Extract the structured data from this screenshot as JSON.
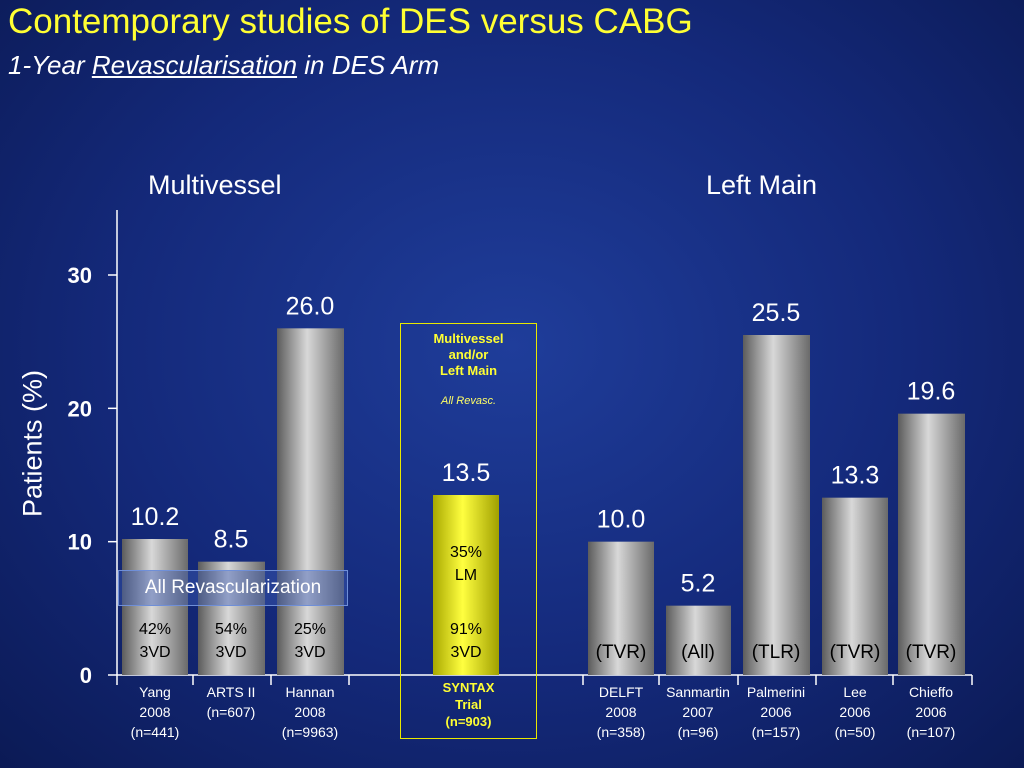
{
  "title": "Contemporary studies of DES versus CABG",
  "subtitle": {
    "prefix": "1-Year ",
    "underlined": "Revascularisation",
    "suffix": " in DES Arm"
  },
  "group_labels": {
    "multivessel": "Multivessel",
    "left_main": "Left Main"
  },
  "all_revascularization_label": "All Revascularization",
  "syntax": {
    "header_lines": [
      "Multivessel",
      "and/or",
      "Left Main"
    ],
    "note": "All Revasc.",
    "footer_lines": [
      "SYNTAX",
      "Trial",
      "(n=903)"
    ]
  },
  "colors": {
    "title": "#ffff33",
    "bar_gray": "#9a9a9a",
    "bar_yellow": "#ffff00",
    "background": "#14297a"
  },
  "chart_data": {
    "type": "bar",
    "ylabel": "Patients (%)",
    "ylim": [
      0,
      35
    ],
    "yticks": [
      0,
      10,
      20,
      30
    ],
    "bars": [
      {
        "label": [
          "Yang",
          "2008",
          "(n=441)"
        ],
        "value": 10.2,
        "value_label": "10.2",
        "inner": [
          "42%",
          "3VD"
        ],
        "color": "gray"
      },
      {
        "label": [
          "ARTS II",
          "(n=607)"
        ],
        "value": 8.5,
        "value_label": "8.5",
        "inner": [
          "54%",
          "3VD"
        ],
        "color": "gray"
      },
      {
        "label": [
          "Hannan",
          "2008",
          "(n=9963)"
        ],
        "value": 26.0,
        "value_label": "26.0",
        "inner": [
          "25%",
          "3VD"
        ],
        "color": "gray"
      },
      {
        "label": [],
        "value": 13.5,
        "value_label": "13.5",
        "inner": [
          "35%",
          "LM",
          "",
          "91%",
          "3VD"
        ],
        "color": "yellow"
      },
      {
        "label": [
          "DELFT",
          "2008",
          "(n=358)"
        ],
        "value": 10.0,
        "value_label": "10.0",
        "inner": [
          "(TVR)"
        ],
        "color": "gray"
      },
      {
        "label": [
          "Sanmartin",
          "2007",
          "(n=96)"
        ],
        "value": 5.2,
        "value_label": "5.2",
        "inner": [
          "(All)"
        ],
        "color": "gray"
      },
      {
        "label": [
          "Palmerini",
          "2006",
          "(n=157)"
        ],
        "value": 25.5,
        "value_label": "25.5",
        "inner": [
          "(TLR)"
        ],
        "color": "gray"
      },
      {
        "label": [
          "Lee",
          "2006",
          "(n=50)"
        ],
        "value": 13.3,
        "value_label": "13.3",
        "inner": [
          "(TVR)"
        ],
        "color": "gray"
      },
      {
        "label": [
          "Chieffo",
          "2006",
          "(n=107)"
        ],
        "value": 19.6,
        "value_label": "19.6",
        "inner": [
          "(TVR)"
        ],
        "color": "gray"
      }
    ]
  }
}
